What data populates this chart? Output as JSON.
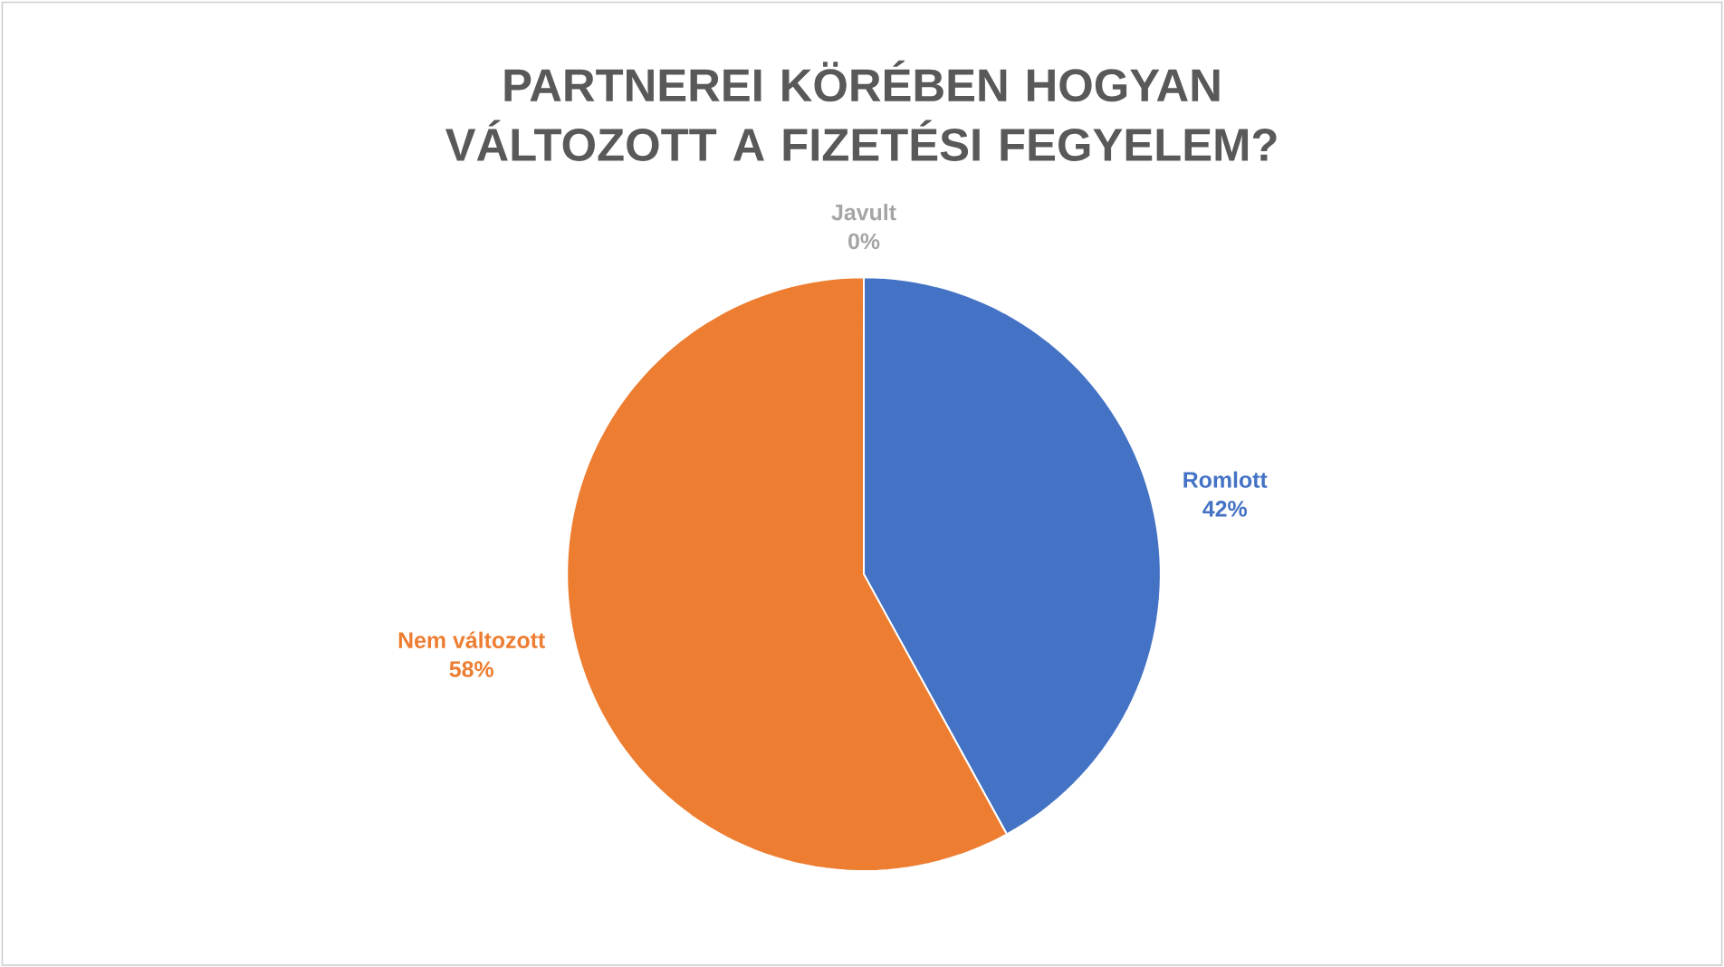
{
  "chart_data": {
    "type": "pie",
    "title": "PARTNEREI KÖRÉBEN HOGYAN VÁLTOZOTT A FIZETÉSI FEGYELEM?",
    "categories": [
      "Javult",
      "Romlott",
      "Nem változott"
    ],
    "values": [
      0,
      42,
      58
    ],
    "value_labels": [
      "0%",
      "42%",
      "58%"
    ],
    "colors": [
      "#a5a5a5",
      "#4472c4",
      "#ed7d31"
    ]
  }
}
